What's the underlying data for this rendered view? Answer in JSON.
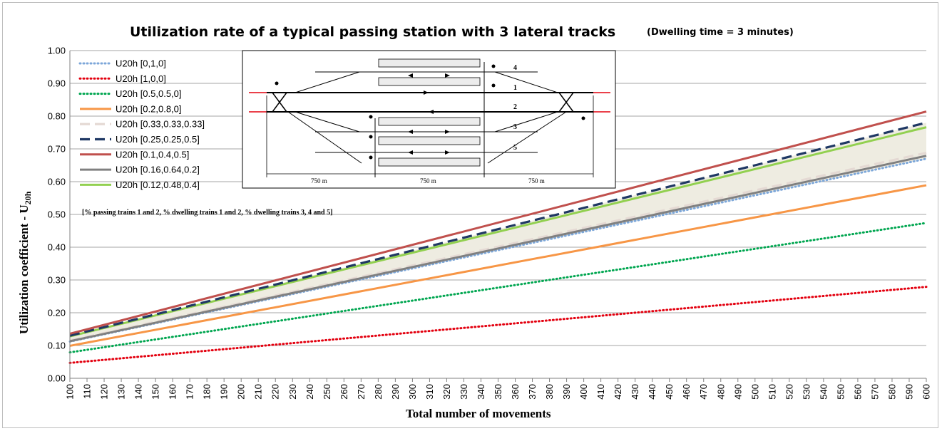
{
  "chart_data": {
    "type": "line",
    "title": "Utilization rate of a typical passing station with 3 lateral tracks",
    "subtitle": "(Dwelling time = 3 minutes)",
    "xlabel": "Total number of movements",
    "ylabel_main": "Utilization coefficient - U",
    "ylabel_sub": "20h",
    "xlim": [
      100,
      600
    ],
    "ylim": [
      0,
      1
    ],
    "x_ticks": [
      "100",
      "110",
      "120",
      "130",
      "140",
      "150",
      "160",
      "170",
      "180",
      "190",
      "200",
      "210",
      "220",
      "230",
      "240",
      "250",
      "260",
      "270",
      "280",
      "290",
      "300",
      "310",
      "320",
      "330",
      "340",
      "350",
      "360",
      "370",
      "380",
      "390",
      "400",
      "410",
      "420",
      "430",
      "440",
      "450",
      "460",
      "470",
      "480",
      "490",
      "500",
      "510",
      "520",
      "530",
      "540",
      "550",
      "560",
      "570",
      "580",
      "590",
      "600"
    ],
    "y_ticks": [
      "0.00",
      "0.10",
      "0.20",
      "0.30",
      "0.40",
      "0.50",
      "0.60",
      "0.70",
      "0.80",
      "0.90",
      "1.00"
    ],
    "grid": "horizontal",
    "legend_position": "top-left",
    "band_color": "#eeece1",
    "series": [
      {
        "name": "U20h [0,1,0]",
        "x": [
          100,
          600
        ],
        "values": [
          0.112,
          0.67
        ],
        "color": "#7da7d9",
        "style": "dotted"
      },
      {
        "name": "U20h  [1,0,0]",
        "x": [
          100,
          600
        ],
        "values": [
          0.047,
          0.279
        ],
        "color": "#e3000f",
        "style": "dotted"
      },
      {
        "name": "U20h [0.5,0.5,0]",
        "x": [
          100,
          600
        ],
        "values": [
          0.079,
          0.474
        ],
        "color": "#00a650",
        "style": "dotted"
      },
      {
        "name": "U20h [0.2,0.8,0]",
        "x": [
          100,
          600
        ],
        "values": [
          0.099,
          0.589
        ],
        "color": "#f79646",
        "style": "solid"
      },
      {
        "name": "U20h [0.33,0.33,0.33]",
        "x": [
          100,
          600
        ],
        "values": [
          0.115,
          0.688
        ],
        "color": "#e4d9d3",
        "style": "dashed"
      },
      {
        "name": "U20h [0.25,0.25,0.5]",
        "x": [
          100,
          600
        ],
        "values": [
          0.13,
          0.78
        ],
        "color": "#1f3864",
        "style": "dashed"
      },
      {
        "name": "U20h [0.1,0.4,0.5]",
        "x": [
          100,
          600
        ],
        "values": [
          0.136,
          0.814
        ],
        "color": "#c0504d",
        "style": "solid"
      },
      {
        "name": "U20h [0.16,0.64,0.2]",
        "x": [
          100,
          600
        ],
        "values": [
          0.113,
          0.679
        ],
        "color": "#808080",
        "style": "solid"
      },
      {
        "name": "U20h [0.12,0.48,0.4]",
        "x": [
          100,
          600
        ],
        "values": [
          0.128,
          0.766
        ],
        "color": "#92d050",
        "style": "solid"
      }
    ],
    "note": "[% passing trains 1 and 2,  % dwelling trains 1 and 2, % dwelling trains 3, 4 and 5]"
  },
  "diagram": {
    "track_labels": [
      "4",
      "1",
      "2",
      "3",
      "5"
    ],
    "distance_labels": [
      "750 m",
      "750 m",
      "750 m"
    ]
  }
}
